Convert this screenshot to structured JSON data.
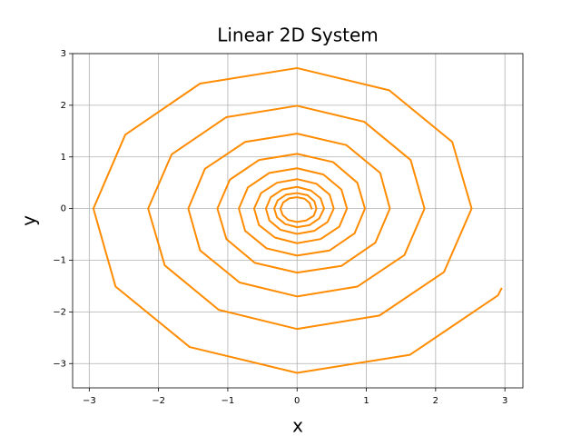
{
  "chart_data": {
    "type": "line",
    "title": "Linear 2D System",
    "xlabel": "x",
    "ylabel": "y",
    "color": "#ff8c00",
    "grid": true,
    "xlim": [
      -3.24,
      3.26
    ],
    "ylim": [
      -3.47,
      3.0
    ],
    "xticks": [
      {
        "value": -3,
        "label": "−3"
      },
      {
        "value": -2,
        "label": "−2"
      },
      {
        "value": -1,
        "label": "−1"
      },
      0,
      1,
      2,
      3
    ],
    "yticks": [
      {
        "value": -3,
        "label": "−3"
      },
      {
        "value": -2,
        "label": "−2"
      },
      {
        "value": -1,
        "label": "−1"
      },
      0,
      1,
      2,
      3
    ],
    "x": [
      2.95,
      2.9,
      1.63,
      0,
      -1.55,
      -2.62,
      -2.94,
      -2.48,
      -1.4,
      0,
      1.33,
      2.24,
      2.52,
      2.12,
      1.19,
      0,
      -1.13,
      -1.91,
      -2.15,
      -1.81,
      -1.02,
      0,
      0.97,
      1.64,
      1.84,
      1.55,
      0.87,
      0,
      -0.83,
      -1.4,
      -1.57,
      -1.33,
      -0.75,
      0,
      0.71,
      1.2,
      1.34,
      1.13,
      0.64,
      0,
      -0.61,
      -1.02,
      -1.15,
      -0.97,
      -0.55,
      0,
      0.52,
      0.87,
      0.98,
      0.83,
      0.47,
      0,
      -0.44,
      -0.75,
      -0.84,
      -0.71,
      -0.4,
      0,
      0.38,
      0.64,
      0.72,
      0.61,
      0.34,
      0,
      -0.32,
      -0.55,
      -0.62,
      -0.52,
      -0.29,
      0,
      0.28,
      0.47,
      0.53,
      0.44,
      0.25,
      0,
      -0.24,
      -0.4,
      -0.45,
      -0.38,
      -0.21,
      0,
      0.2,
      0.34,
      0.39,
      0.32,
      0.18,
      0,
      -0.17,
      -0.29,
      -0.33,
      -0.28,
      -0.16,
      0,
      0.15,
      0.25,
      0.28,
      0.24,
      0.13,
      0,
      -0.13,
      -0.21,
      -0.24,
      -0.2,
      -0.11,
      0,
      0.11,
      0.18,
      0.21
    ],
    "values": [
      -1.55,
      -1.68,
      -2.83,
      -3.18,
      -2.68,
      -1.51,
      0,
      1.43,
      2.42,
      2.72,
      2.29,
      1.29,
      0,
      -1.23,
      -2.07,
      -2.33,
      -1.96,
      -1.1,
      0,
      1.05,
      1.77,
      1.99,
      1.68,
      0.94,
      0,
      -0.9,
      -1.51,
      -1.7,
      -1.43,
      -0.81,
      0,
      0.77,
      1.29,
      1.45,
      1.23,
      0.69,
      0,
      -0.66,
      -1.11,
      -1.24,
      -1.05,
      -0.59,
      0,
      0.56,
      0.94,
      1.06,
      0.9,
      0.5,
      0,
      -0.48,
      -0.81,
      -0.91,
      -0.77,
      -0.43,
      0,
      0.41,
      0.69,
      0.78,
      0.66,
      0.37,
      0,
      -0.35,
      -0.59,
      -0.67,
      -0.56,
      -0.32,
      0,
      0.3,
      0.5,
      0.57,
      0.48,
      0.27,
      0,
      -0.26,
      -0.43,
      -0.49,
      -0.41,
      -0.23,
      0,
      0.22,
      0.37,
      0.42,
      0.35,
      0.2,
      0,
      -0.19,
      -0.32,
      -0.36,
      -0.3,
      -0.17,
      0,
      0.16,
      0.27,
      0.3,
      0.26,
      0.14,
      0,
      -0.14,
      -0.23,
      -0.26,
      -0.22,
      -0.12,
      0,
      0.12,
      0.2,
      0.22,
      0.19,
      0.11,
      0
    ]
  }
}
